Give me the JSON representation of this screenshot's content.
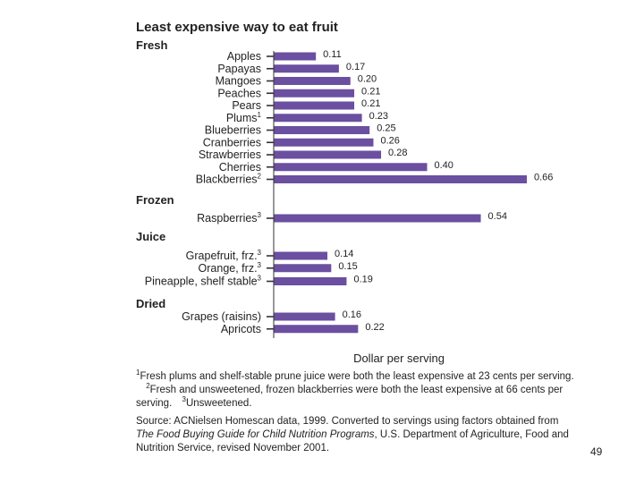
{
  "chart_data": {
    "type": "bar",
    "orientation": "horizontal",
    "title": "Least expensive way to eat fruit",
    "xlabel": "Dollar per serving",
    "xlim": [
      0,
      0.66
    ],
    "bar_color": "#6b4fa0",
    "groups": [
      {
        "name": "Fresh",
        "items": [
          {
            "label": "Apples",
            "sup": "",
            "value": 0.11,
            "value_label": "0.11"
          },
          {
            "label": "Papayas",
            "sup": "",
            "value": 0.17,
            "value_label": "0.17"
          },
          {
            "label": "Mangoes",
            "sup": "",
            "value": 0.2,
            "value_label": "0.20"
          },
          {
            "label": "Peaches",
            "sup": "",
            "value": 0.21,
            "value_label": "0.21"
          },
          {
            "label": "Pears",
            "sup": "",
            "value": 0.21,
            "value_label": "0.21"
          },
          {
            "label": "Plums",
            "sup": "1",
            "value": 0.23,
            "value_label": "0.23"
          },
          {
            "label": "Blueberries",
            "sup": "",
            "value": 0.25,
            "value_label": "0.25"
          },
          {
            "label": "Cranberries",
            "sup": "",
            "value": 0.26,
            "value_label": "0.26"
          },
          {
            "label": "Strawberries",
            "sup": "",
            "value": 0.28,
            "value_label": "0.28"
          },
          {
            "label": "Cherries",
            "sup": "",
            "value": 0.4,
            "value_label": "0.40"
          },
          {
            "label": "Blackberries",
            "sup": "2",
            "value": 0.66,
            "value_label": "0.66"
          }
        ]
      },
      {
        "name": "Frozen",
        "items": [
          {
            "label": "Raspberries",
            "sup": "3",
            "value": 0.54,
            "value_label": "0.54"
          }
        ]
      },
      {
        "name": "Juice",
        "items": [
          {
            "label": "Grapefruit, frz.",
            "sup": "3",
            "value": 0.14,
            "value_label": "0.14"
          },
          {
            "label": "Orange, frz.",
            "sup": "3",
            "value": 0.15,
            "value_label": "0.15"
          },
          {
            "label": "Pineapple, shelf stable",
            "sup": "3",
            "value": 0.19,
            "value_label": "0.19"
          }
        ]
      },
      {
        "name": "Dried",
        "items": [
          {
            "label": "Grapes (raisins)",
            "sup": "",
            "value": 0.16,
            "value_label": "0.16"
          },
          {
            "label": "Apricots",
            "sup": "",
            "value": 0.22,
            "value_label": "0.22"
          }
        ]
      }
    ]
  },
  "footnotes": {
    "n1_mark": "1",
    "n1_text": "Fresh plums and shelf-stable prune juice were both the least expensive at 23 cents per serving.",
    "n2_mark": "2",
    "n2_text": "Fresh and unsweetened, frozen blackberries were both the least expensive at 66 cents per serving.",
    "n3_mark": "3",
    "n3_text": "Unsweetened."
  },
  "source": {
    "before": "Source: ACNielsen Homescan data, 1999. Converted to servings using factors obtained from ",
    "italic": "The Food Buying Guide for Child Nutrition Programs",
    "after": ", U.S. Department of Agriculture, Food and Nutrition Service, revised November 2001."
  },
  "page_number": "49"
}
